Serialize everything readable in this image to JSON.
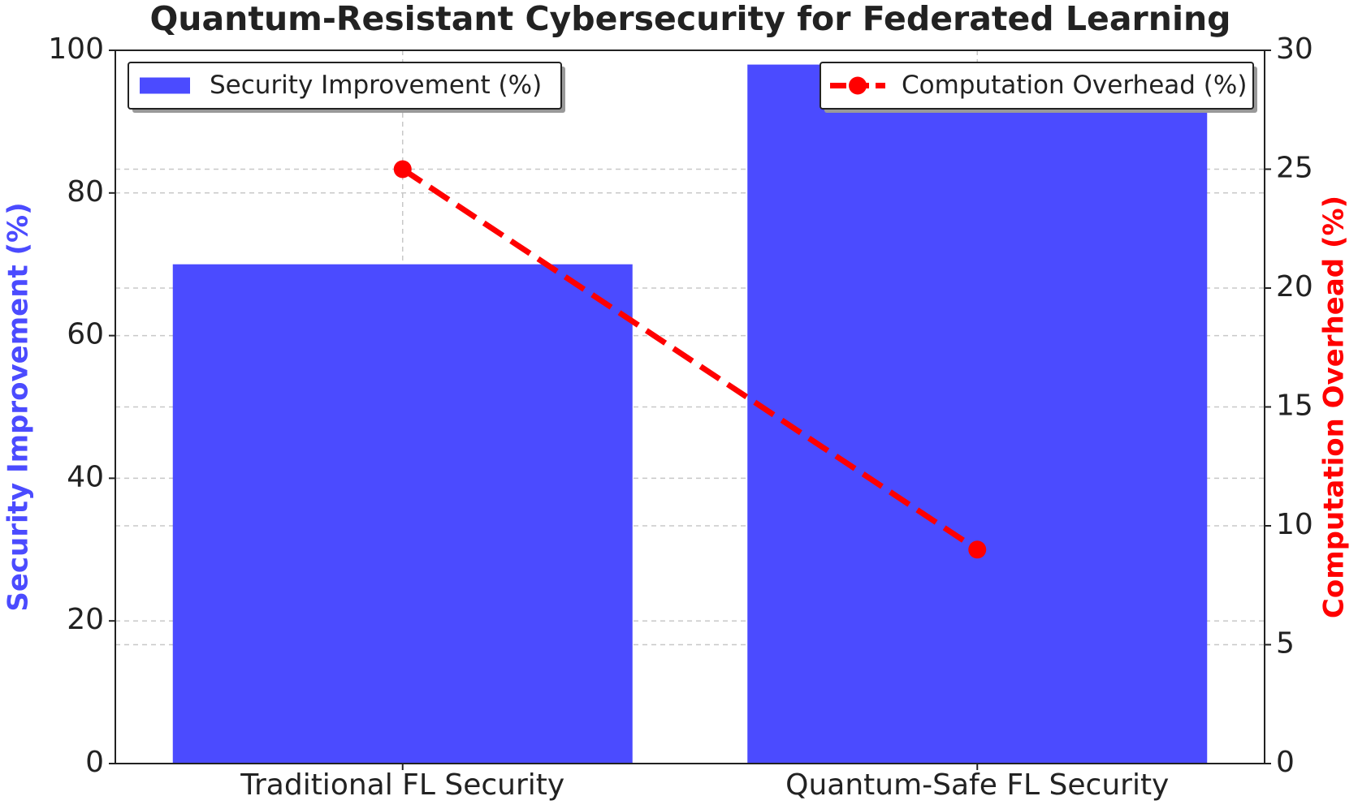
{
  "chart_data": {
    "type": "bar",
    "title": "Quantum-Resistant Cybersecurity for Federated Learning",
    "categories": [
      "Traditional FL Security",
      "Quantum-Safe FL Security"
    ],
    "y_label": "Security Improvement (%)",
    "y2_label": "Computation Overhead (%)",
    "series": [
      {
        "name": "Security Improvement (%)",
        "type": "bar",
        "color": "#4b4bff",
        "values": [
          70,
          98
        ],
        "legend": "upper left"
      },
      {
        "name": "Computation Overhead (%)",
        "type": "line",
        "axis": "y2",
        "color": "#ff0000",
        "values": [
          25,
          9
        ],
        "legend": "upper right"
      }
    ],
    "ylim": [
      0,
      100
    ],
    "yticks": [
      0,
      20,
      40,
      60,
      80,
      100
    ],
    "y2lim": [
      0,
      30
    ],
    "y2ticks": [
      0,
      5,
      10,
      15,
      20,
      25,
      30
    ],
    "grid": true
  }
}
